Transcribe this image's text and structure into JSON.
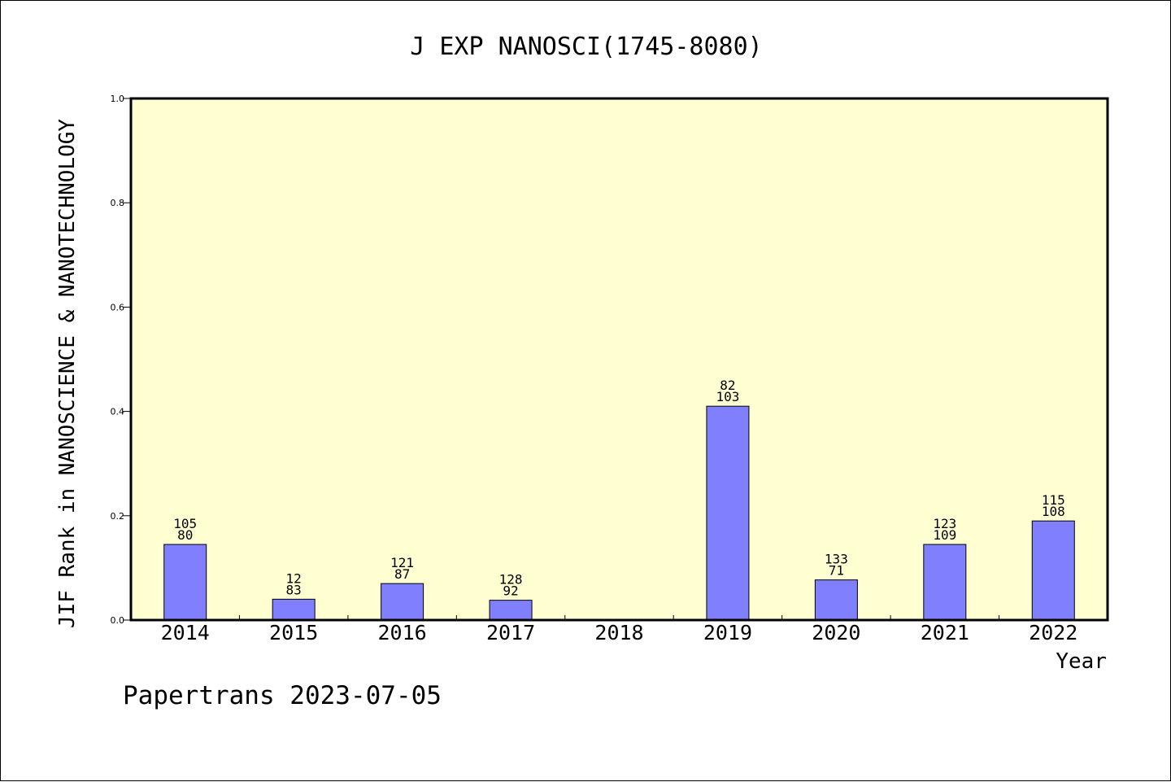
{
  "chart_data": {
    "type": "bar",
    "title": "J EXP NANOSCI(1745-8080)",
    "xlabel": "Year",
    "ylabel": "JIF Rank in NANOSCIENCE & NANOTECHNOLOGY",
    "ylim": [
      0,
      1.0
    ],
    "yticks": [
      "0.0",
      "0.2",
      "0.4",
      "0.6",
      "0.8",
      "1.0"
    ],
    "categories": [
      "2014",
      "2015",
      "2016",
      "2017",
      "2018",
      "2019",
      "2020",
      "2021",
      "2022"
    ],
    "values": [
      0.145,
      0.04,
      0.07,
      0.038,
      null,
      0.41,
      0.077,
      0.145,
      0.19
    ],
    "labels_top": [
      "105",
      "12",
      "121",
      "128",
      "",
      "82",
      "133",
      "123",
      "115"
    ],
    "labels_bottom": [
      "80",
      "83",
      "87",
      "92",
      "",
      "103",
      "71",
      "109",
      "108"
    ],
    "colors": {
      "plot_bg": "#ffffd2",
      "bar": "#8080ff",
      "axis": "#000000"
    },
    "grid": false,
    "legend": "none"
  },
  "footer": {
    "text": "Papertrans 2023-07-05"
  }
}
